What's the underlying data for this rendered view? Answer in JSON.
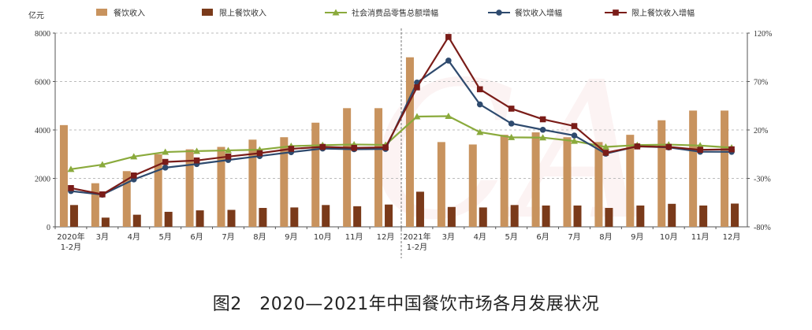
{
  "caption": "图2　2020—2021年中国餐饮市场各月发展状况",
  "chart_data": {
    "type": "bar",
    "y_left_unit": "亿元",
    "y_left_range": [
      0,
      8000
    ],
    "y_left_ticks": [
      "0",
      "2000",
      "4000",
      "6000",
      "8000"
    ],
    "y_right_range": [
      -80,
      120
    ],
    "y_right_ticks": [
      "-80%",
      "-30%",
      "20%",
      "70%",
      "120%"
    ],
    "grid": true,
    "legend_position": "top",
    "categories": [
      [
        "2020年",
        "1-2月"
      ],
      [
        "3月"
      ],
      [
        "4月"
      ],
      [
        "5月"
      ],
      [
        "6月"
      ],
      [
        "7月"
      ],
      [
        "8月"
      ],
      [
        "9月"
      ],
      [
        "10月"
      ],
      [
        "11月"
      ],
      [
        "12月"
      ],
      [
        "2021年",
        "1-2月"
      ],
      [
        "3月"
      ],
      [
        "4月"
      ],
      [
        "5月"
      ],
      [
        "6月"
      ],
      [
        "7月"
      ],
      [
        "8月"
      ],
      [
        "9月"
      ],
      [
        "10月"
      ],
      [
        "11月"
      ],
      [
        "12月"
      ]
    ],
    "bar_series": [
      {
        "name": "餐饮收入",
        "axis": "left",
        "color": "#c8935e",
        "values": [
          4200,
          1800,
          2300,
          3000,
          3200,
          3300,
          3600,
          3700,
          4300,
          4900,
          4900,
          7000,
          3500,
          3400,
          3800,
          3900,
          3700,
          3500,
          3800,
          4400,
          4800,
          4800
        ]
      },
      {
        "name": "限上餐饮收入",
        "axis": "left",
        "color": "#7a3a1a",
        "values": [
          900,
          380,
          500,
          620,
          680,
          700,
          780,
          800,
          900,
          850,
          920,
          1450,
          820,
          800,
          900,
          880,
          880,
          780,
          880,
          950,
          880,
          960
        ]
      }
    ],
    "line_series": [
      {
        "name": "社会消费品零售总额增幅",
        "axis": "right",
        "color": "#8aaa3c",
        "marker": "triangle",
        "values": [
          -20.5,
          -15.8,
          -7.5,
          -2.8,
          -1.8,
          -1.1,
          -0.4,
          3.3,
          4.3,
          5.0,
          4.6,
          33.8,
          34.2,
          17.7,
          12.4,
          12.1,
          8.5,
          2.5,
          4.4,
          4.9,
          3.9,
          1.7
        ]
      },
      {
        "name": "餐饮收入增幅",
        "axis": "right",
        "color": "#2e4a6e",
        "marker": "circle",
        "values": [
          -43.1,
          -46.8,
          -31.1,
          -18.9,
          -15.2,
          -11.0,
          -7.0,
          -2.9,
          0.8,
          0.1,
          0.4,
          68.9,
          91.6,
          46.4,
          26.6,
          20.2,
          14.3,
          -4.5,
          3.1,
          2.0,
          -2.5,
          -2.6
        ]
      },
      {
        "name": "限上餐饮收入增幅",
        "axis": "right",
        "color": "#7a1c18",
        "marker": "square",
        "values": [
          -40.0,
          -46.5,
          -27.0,
          -13.0,
          -11.5,
          -7.5,
          -4.0,
          0.5,
          2.5,
          1.5,
          2.0,
          64.0,
          116.0,
          62.0,
          42.0,
          31.0,
          24.0,
          -3.5,
          3.0,
          2.5,
          -0.5,
          0.0
        ]
      }
    ]
  }
}
